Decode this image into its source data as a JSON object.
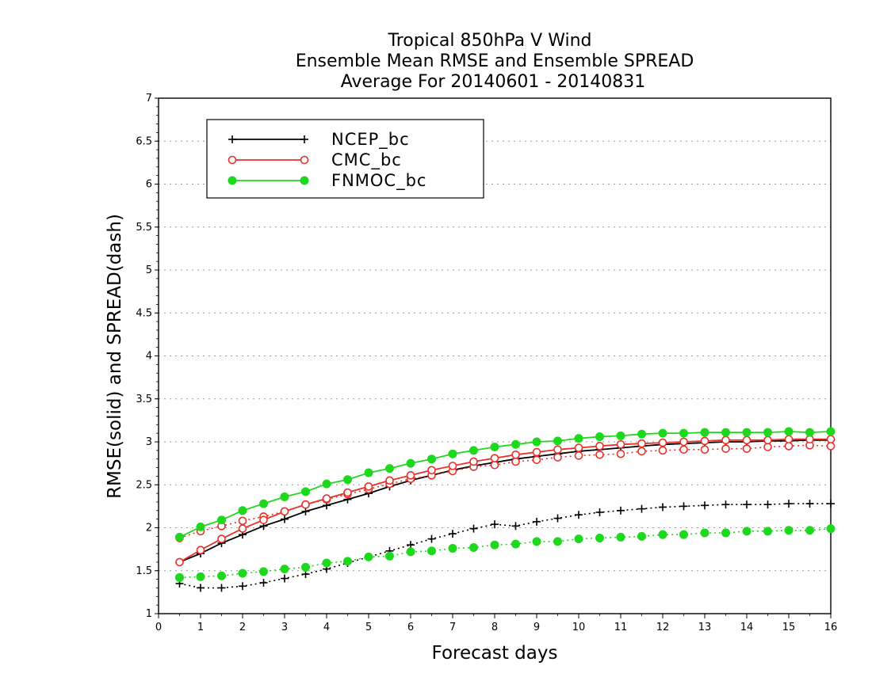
{
  "title_lines": [
    "Tropical 850hPa V Wind",
    "Ensemble Mean RMSE and Ensemble SPREAD",
    "Average For 20140601 - 20140831"
  ],
  "chart_data": {
    "type": "line",
    "title": "Tropical 850hPa V Wind / Ensemble Mean RMSE and Ensemble SPREAD / Average For 20140601 - 20140831",
    "xlabel": "Forecast days",
    "ylabel": "RMSE(solid) and SPREAD(dash)",
    "xlim": [
      0,
      16
    ],
    "ylim": [
      1,
      7
    ],
    "xticks": [
      0,
      1,
      2,
      3,
      4,
      5,
      6,
      7,
      8,
      9,
      10,
      11,
      12,
      13,
      14,
      15,
      16
    ],
    "yticks": [
      1,
      1.5,
      2,
      2.5,
      3,
      3.5,
      4,
      4.5,
      5,
      5.5,
      6,
      6.5,
      7
    ],
    "ytick_labels": [
      "1",
      "1.5",
      "2",
      "2.5",
      "3",
      "3.5",
      "4",
      "4.5",
      "5",
      "5.5",
      "6",
      "6.5",
      "7"
    ],
    "grid": "horizontal dotted",
    "legend_position": "top-left",
    "x": [
      0.5,
      1.0,
      1.5,
      2.0,
      2.5,
      3.0,
      3.5,
      4.0,
      4.5,
      5.0,
      5.5,
      6.0,
      6.5,
      7.0,
      7.5,
      8.0,
      8.5,
      9.0,
      9.5,
      10.0,
      10.5,
      11.0,
      11.5,
      12.0,
      12.5,
      13.0,
      13.5,
      14.0,
      14.5,
      15.0,
      15.5,
      16.0
    ],
    "series": [
      {
        "name": "NCEP_bc",
        "color": "#000000",
        "marker": "plus",
        "rmse": [
          1.6,
          1.7,
          1.82,
          1.92,
          2.02,
          2.1,
          2.19,
          2.26,
          2.33,
          2.4,
          2.48,
          2.55,
          2.61,
          2.67,
          2.72,
          2.76,
          2.8,
          2.83,
          2.86,
          2.89,
          2.91,
          2.93,
          2.95,
          2.97,
          2.98,
          2.99,
          3.0,
          3.0,
          3.01,
          3.01,
          3.02,
          3.02
        ],
        "spread": [
          1.35,
          1.3,
          1.3,
          1.32,
          1.36,
          1.41,
          1.46,
          1.52,
          1.59,
          1.66,
          1.73,
          1.8,
          1.87,
          1.93,
          1.99,
          2.04,
          2.02,
          2.07,
          2.11,
          2.15,
          2.18,
          2.2,
          2.22,
          2.24,
          2.25,
          2.26,
          2.27,
          2.27,
          2.27,
          2.28,
          2.28,
          2.28
        ]
      },
      {
        "name": "CMC_bc",
        "color": "#e8312a",
        "marker": "open-circle",
        "rmse": [
          1.6,
          1.74,
          1.87,
          1.99,
          2.09,
          2.19,
          2.27,
          2.34,
          2.41,
          2.48,
          2.55,
          2.61,
          2.67,
          2.72,
          2.77,
          2.81,
          2.85,
          2.88,
          2.91,
          2.93,
          2.95,
          2.97,
          2.98,
          2.99,
          3.0,
          3.01,
          3.02,
          3.02,
          3.02,
          3.03,
          3.03,
          3.03
        ],
        "spread": [
          1.88,
          1.96,
          2.02,
          2.08,
          2.13,
          2.19,
          2.27,
          2.33,
          2.39,
          2.45,
          2.51,
          2.57,
          2.61,
          2.66,
          2.71,
          2.73,
          2.77,
          2.79,
          2.82,
          2.84,
          2.85,
          2.86,
          2.89,
          2.9,
          2.91,
          2.91,
          2.92,
          2.92,
          2.94,
          2.95,
          2.96,
          2.95
        ]
      },
      {
        "name": "FNMOC_bc",
        "color": "#1ed81e",
        "marker": "filled-circle",
        "rmse": [
          1.89,
          2.01,
          2.09,
          2.2,
          2.28,
          2.36,
          2.42,
          2.51,
          2.56,
          2.64,
          2.69,
          2.75,
          2.8,
          2.86,
          2.9,
          2.94,
          2.97,
          3.0,
          3.01,
          3.04,
          3.06,
          3.07,
          3.09,
          3.1,
          3.1,
          3.11,
          3.11,
          3.11,
          3.11,
          3.12,
          3.11,
          3.12
        ],
        "spread": [
          1.42,
          1.43,
          1.44,
          1.47,
          1.49,
          1.52,
          1.54,
          1.59,
          1.61,
          1.66,
          1.67,
          1.72,
          1.73,
          1.76,
          1.77,
          1.8,
          1.81,
          1.84,
          1.84,
          1.87,
          1.88,
          1.89,
          1.9,
          1.92,
          1.92,
          1.94,
          1.94,
          1.96,
          1.96,
          1.97,
          1.97,
          1.99
        ]
      }
    ]
  }
}
